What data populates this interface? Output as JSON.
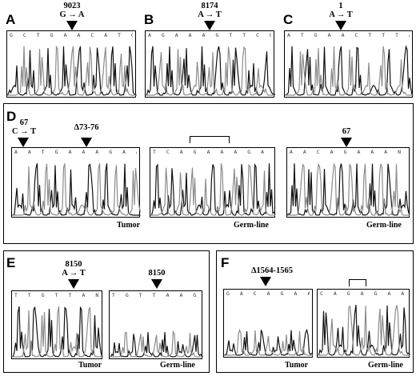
{
  "panels": {
    "A": {
      "letter": "A",
      "position": "9023",
      "change": "G → A",
      "seq": "G C T G A A C A T G T C T T A"
    },
    "B": {
      "letter": "B",
      "position": "8174",
      "change": "A → T",
      "seq": "A G A A A G T T C G C T T T T"
    },
    "C": {
      "letter": "C",
      "position": "1",
      "change": "A → T",
      "seq": "A T G A A C T T T A G T G T C"
    },
    "D": {
      "letter": "D",
      "pos1": "67",
      "change1": "C → T",
      "deletion": "Δ73-76",
      "seq1": "A A T G A A A G A A G T T G",
      "seq2": "T C A G A A A G A A A G A A G T T",
      "pos3": "67",
      "seq3": "A A C A G A A A N G A A A G A",
      "tumor_label": "Tumor",
      "germ_label_1": "Germ-line",
      "germ_label_2": "Germ-line"
    },
    "E": {
      "letter": "E",
      "position": "8150",
      "change": "A → T",
      "pos2": "8150",
      "seq1": "T T G T T A N G G G G",
      "seq2": "T G T T A A G G T G G",
      "tumor_label": "Tumor",
      "germ_label": "Germ-line"
    },
    "F": {
      "letter": "F",
      "deletion": "Δ1564-1565",
      "seq1": "G A C A G A A T T C T",
      "seq2": "C A G A G A A T T C T",
      "tumor_label": "Tumor",
      "germ_label": "Germ-line"
    }
  },
  "trace_colors": {
    "black": "#111111",
    "gray": "#8c8c8c"
  }
}
